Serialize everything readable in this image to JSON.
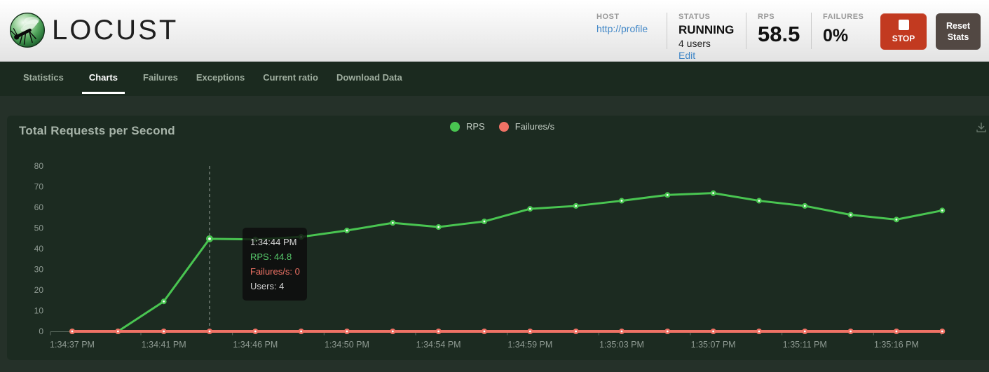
{
  "header": {
    "logo_text": "LOCUST",
    "host": {
      "label": "HOST",
      "value": "http://profile"
    },
    "status": {
      "label": "STATUS",
      "value": "RUNNING",
      "users": "4 users",
      "edit_link": "Edit"
    },
    "rps": {
      "label": "RPS",
      "value": "58.5"
    },
    "failures": {
      "label": "FAILURES",
      "value": "0%"
    },
    "stop_button": "STOP",
    "reset_button": "Reset Stats"
  },
  "nav": {
    "tabs": [
      {
        "label": "Statistics",
        "active": false
      },
      {
        "label": "Charts",
        "active": true
      },
      {
        "label": "Failures",
        "active": false
      },
      {
        "label": "Exceptions",
        "active": false
      },
      {
        "label": "Current ratio",
        "active": false
      },
      {
        "label": "Download Data",
        "active": false
      }
    ]
  },
  "chart": {
    "title": "Total Requests per Second",
    "legend": [
      {
        "label": "RPS",
        "color": "#49c551"
      },
      {
        "label": "Failures/s",
        "color": "#ef7265"
      }
    ]
  },
  "tooltip": {
    "time": "1:34:44 PM",
    "rps_line": "RPS: 44.8",
    "failures_line": "Failures/s: 0",
    "users_line": "Users: 4"
  },
  "chart_data": {
    "type": "line",
    "title": "Total Requests per Second",
    "n_points": 20,
    "x_tick_labels": [
      "1:34:37 PM",
      "1:34:41 PM",
      "1:34:46 PM",
      "1:34:50 PM",
      "1:34:54 PM",
      "1:34:59 PM",
      "1:35:03 PM",
      "1:35:07 PM",
      "1:35:11 PM",
      "1:35:16 PM"
    ],
    "x_label_every_n_points": 2,
    "series": [
      {
        "name": "RPS",
        "color": "#49c551",
        "values": [
          0,
          0,
          14.5,
          44.8,
          44.5,
          45.7,
          48.8,
          52.5,
          50.5,
          53.2,
          59.3,
          60.7,
          63.2,
          66.0,
          66.9,
          63.2,
          60.7,
          56.4,
          54.1,
          58.5
        ]
      },
      {
        "name": "Failures/s",
        "color": "#ef7265",
        "values": [
          0,
          0,
          0,
          0,
          0,
          0,
          0,
          0,
          0,
          0,
          0,
          0,
          0,
          0,
          0,
          0,
          0,
          0,
          0,
          0
        ]
      }
    ],
    "ylim": [
      0,
      80
    ],
    "ytick_step": 10,
    "grid": false,
    "legend_position": "top-center",
    "highlight": {
      "index": 3,
      "time": "1:34:44 PM",
      "RPS": 44.8,
      "Failures_per_s": 0,
      "Users": 4
    }
  },
  "colors": {
    "rps_green": "#49c551",
    "failures_red": "#ef7265",
    "link_blue": "#4187c7",
    "stop_button_red": "#c23a20",
    "reset_button_gray": "#524843",
    "nav_bg": "#1b2a1f",
    "page_bg": "#253129",
    "panel_bg": "#1c2b21",
    "axis_text": "#8f9b93"
  }
}
